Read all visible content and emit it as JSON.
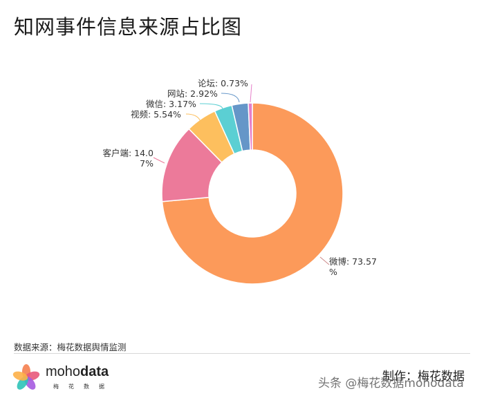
{
  "title": "知网事件信息来源占比图",
  "chart_data": {
    "type": "pie",
    "variant": "donut",
    "title": "知网事件信息来源占比图",
    "categories": [
      "微博",
      "客户端",
      "视频",
      "微信",
      "网站",
      "论坛"
    ],
    "values": [
      73.57,
      14.07,
      5.54,
      3.17,
      2.92,
      0.73
    ],
    "unit": "%",
    "colors": [
      "#fc9a5a",
      "#ec7a9a",
      "#fdbf5e",
      "#5bcfd3",
      "#6596c8",
      "#e57fc9"
    ],
    "labels": [
      "微博: 73.57%",
      "客户端: 14.07%",
      "视频: 5.54%",
      "微信: 3.17%",
      "网站: 2.92%",
      "论坛: 0.73%"
    ],
    "legend": "none (labels with leader lines)"
  },
  "labels": {
    "weibo_line1": "微博: 73.57",
    "weibo_line2": "%",
    "client_line1": "客户端: 14.0",
    "client_line2": "7%",
    "video": "视频: 5.54%",
    "wechat": "微信: 3.17%",
    "website": "网站: 2.92%",
    "forum": "论坛: 0.73%"
  },
  "footer": {
    "source": "数据来源：梅花数据舆情监测",
    "brand_light": "moho",
    "brand_bold": "data",
    "brand_sub": "梅花数据",
    "credit": "制作：梅花数据",
    "watermark": "头条 @梅花数据mohodata"
  }
}
